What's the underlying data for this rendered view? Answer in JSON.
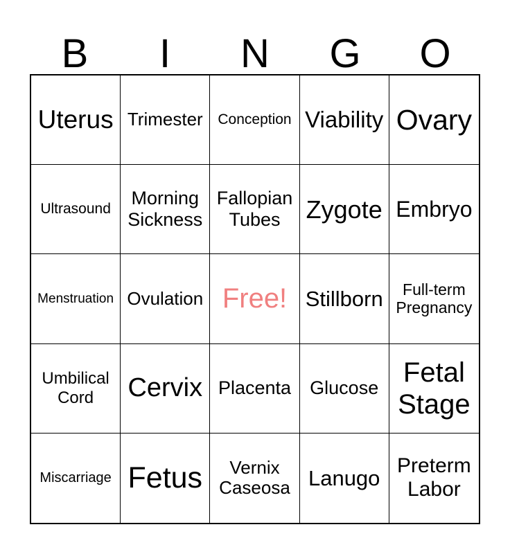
{
  "header": {
    "letters": [
      "B",
      "I",
      "N",
      "G",
      "O"
    ]
  },
  "board": {
    "rows": [
      [
        "Uterus",
        "Trimester",
        "Conception",
        "Viability",
        "Ovary"
      ],
      [
        "Ultrasound",
        "Morning Sickness",
        "Fallopian Tubes",
        "Zygote",
        "Embryo"
      ],
      [
        "Menstruation",
        "Ovulation",
        "Free!",
        "Stillborn",
        "Full-term Pregnancy"
      ],
      [
        "Umbilical Cord",
        "Cervix",
        "Placenta",
        "Glucose",
        "Fetal Stage"
      ],
      [
        "Miscarriage",
        "Fetus",
        "Vernix Caseosa",
        "Lanugo",
        "Preterm Labor"
      ]
    ]
  },
  "free_space": {
    "label": "Free!",
    "color": "#F08080"
  },
  "colors": {
    "grid_line": "#000000",
    "text": "#000000",
    "background": "#FFFFFF"
  }
}
